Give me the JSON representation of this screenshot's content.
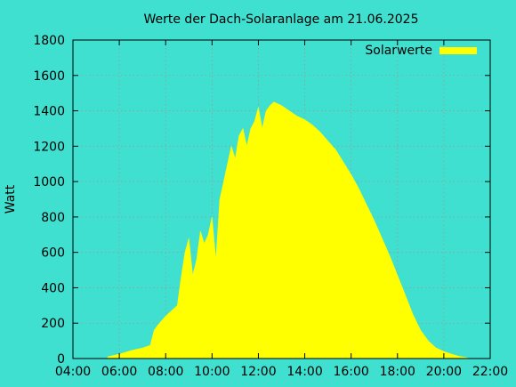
{
  "chart_data": {
    "type": "area",
    "title": "Werte der Dach-Solaranlage am 21.06.2025",
    "xlabel": "",
    "ylabel": "Watt",
    "xlim": [
      "04:00",
      "22:00"
    ],
    "ylim": [
      0,
      1800
    ],
    "x_ticks": [
      "04:00",
      "06:00",
      "08:00",
      "10:00",
      "12:00",
      "14:00",
      "16:00",
      "18:00",
      "20:00",
      "22:00"
    ],
    "y_ticks": [
      0,
      200,
      400,
      600,
      800,
      1000,
      1200,
      1400,
      1600,
      1800
    ],
    "grid": true,
    "legend_position": "top-right",
    "series": [
      {
        "name": "Solarwerte",
        "color": "#ffff00",
        "x": [
          "05:30",
          "06:00",
          "06:30",
          "07:00",
          "07:20",
          "07:30",
          "07:40",
          "08:00",
          "08:20",
          "08:30",
          "08:40",
          "08:50",
          "09:00",
          "09:10",
          "09:20",
          "09:30",
          "09:40",
          "09:50",
          "10:00",
          "10:10",
          "10:20",
          "10:30",
          "10:40",
          "10:50",
          "11:00",
          "11:10",
          "11:20",
          "11:30",
          "11:40",
          "11:50",
          "12:00",
          "12:10",
          "12:20",
          "12:30",
          "12:40",
          "12:50",
          "13:00",
          "13:20",
          "13:40",
          "14:00",
          "14:20",
          "14:40",
          "15:00",
          "15:20",
          "15:40",
          "16:00",
          "16:20",
          "16:40",
          "17:00",
          "17:20",
          "17:40",
          "18:00",
          "18:20",
          "18:40",
          "19:00",
          "19:20",
          "19:40",
          "20:00",
          "20:20",
          "20:40",
          "21:00",
          "21:05"
        ],
        "values": [
          10,
          25,
          45,
          60,
          75,
          160,
          190,
          240,
          280,
          300,
          460,
          600,
          680,
          470,
          560,
          720,
          650,
          700,
          800,
          560,
          900,
          1000,
          1100,
          1200,
          1130,
          1260,
          1300,
          1200,
          1300,
          1340,
          1420,
          1300,
          1400,
          1430,
          1450,
          1440,
          1430,
          1400,
          1370,
          1350,
          1320,
          1280,
          1230,
          1180,
          1110,
          1040,
          960,
          870,
          780,
          680,
          580,
          470,
          360,
          250,
          160,
          100,
          60,
          40,
          25,
          12,
          5,
          0
        ]
      }
    ]
  }
}
